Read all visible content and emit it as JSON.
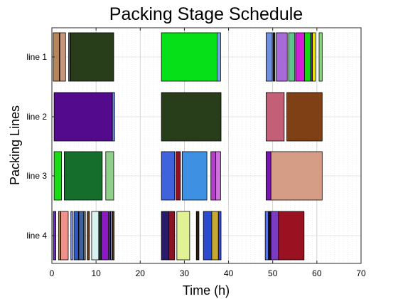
{
  "chart_data": {
    "type": "gantt",
    "title": "Packing Stage Schedule",
    "xlabel": "Time (h)",
    "ylabel": "Packing Lines",
    "xlim": [
      0,
      70
    ],
    "x_ticks": [
      0,
      10,
      20,
      30,
      40,
      50,
      60,
      70
    ],
    "grid": true,
    "categories": [
      "line 1",
      "line 2",
      "line 3",
      "line 4"
    ],
    "tasks": [
      {
        "line": "line 1",
        "start": 0.3,
        "end": 1.7,
        "color": "#B5865A"
      },
      {
        "line": "line 1",
        "start": 1.8,
        "end": 3.1,
        "color": "#C8967A"
      },
      {
        "line": "line 1",
        "start": 3.8,
        "end": 4.1,
        "color": "#4A7AC8"
      },
      {
        "line": "line 1",
        "start": 4.2,
        "end": 14.0,
        "color": "#283D19"
      },
      {
        "line": "line 1",
        "start": 24.8,
        "end": 37.4,
        "color": "#06E019"
      },
      {
        "line": "line 1",
        "start": 37.4,
        "end": 38.2,
        "color": "#6FA6E6"
      },
      {
        "line": "line 1",
        "start": 48.5,
        "end": 49.9,
        "color": "#6F8FE0"
      },
      {
        "line": "line 1",
        "start": 50.1,
        "end": 50.5,
        "color": "#2B2A12"
      },
      {
        "line": "line 1",
        "start": 50.8,
        "end": 53.3,
        "color": "#A86AD8"
      },
      {
        "line": "line 1",
        "start": 53.6,
        "end": 55.0,
        "color": "#5FC48C"
      },
      {
        "line": "line 1",
        "start": 55.2,
        "end": 57.2,
        "color": "#D21ED8"
      },
      {
        "line": "line 1",
        "start": 57.2,
        "end": 58.6,
        "color": "#12D80E"
      },
      {
        "line": "line 1",
        "start": 58.7,
        "end": 59.0,
        "color": "#6C3CC9"
      },
      {
        "line": "line 1",
        "start": 59.0,
        "end": 59.7,
        "color": "#E6E60E"
      },
      {
        "line": "line 1",
        "start": 60.5,
        "end": 61.2,
        "color": "#86D87C"
      },
      {
        "line": "line 2",
        "start": 0.5,
        "end": 13.7,
        "color": "#530A8C"
      },
      {
        "line": "line 2",
        "start": 13.7,
        "end": 14.2,
        "color": "#6E86DC"
      },
      {
        "line": "line 2",
        "start": 24.8,
        "end": 38.3,
        "color": "#283D19"
      },
      {
        "line": "line 2",
        "start": 48.5,
        "end": 52.6,
        "color": "#C35F76"
      },
      {
        "line": "line 2",
        "start": 53.2,
        "end": 61.2,
        "color": "#804016"
      },
      {
        "line": "line 3",
        "start": 0.5,
        "end": 2.2,
        "color": "#1CDA16"
      },
      {
        "line": "line 3",
        "start": 2.8,
        "end": 11.4,
        "color": "#156E2B"
      },
      {
        "line": "line 3",
        "start": 12.2,
        "end": 14.0,
        "color": "#90D08A"
      },
      {
        "line": "line 3",
        "start": 24.8,
        "end": 27.8,
        "color": "#3E63DC"
      },
      {
        "line": "line 3",
        "start": 28.1,
        "end": 29.1,
        "color": "#8C1026"
      },
      {
        "line": "line 3",
        "start": 29.5,
        "end": 35.1,
        "color": "#3E90E3"
      },
      {
        "line": "line 3",
        "start": 36.0,
        "end": 37.1,
        "color": "#B33EC9"
      },
      {
        "line": "line 3",
        "start": 37.1,
        "end": 38.2,
        "color": "#CE70DA"
      },
      {
        "line": "line 3",
        "start": 48.5,
        "end": 49.6,
        "color": "#7A14B4"
      },
      {
        "line": "line 3",
        "start": 49.6,
        "end": 61.2,
        "color": "#D59C86"
      },
      {
        "line": "line 4",
        "start": 0.3,
        "end": 0.9,
        "color": "#6E28C4"
      },
      {
        "line": "line 4",
        "start": 1.5,
        "end": 1.9,
        "color": "#D2962D"
      },
      {
        "line": "line 4",
        "start": 2.0,
        "end": 3.7,
        "color": "#F0928C"
      },
      {
        "line": "line 4",
        "start": 4.3,
        "end": 4.7,
        "color": "#8C9CF0"
      },
      {
        "line": "line 4",
        "start": 5.0,
        "end": 6.0,
        "color": "#2E5CC6"
      },
      {
        "line": "line 4",
        "start": 6.1,
        "end": 7.2,
        "color": "#4060A0"
      },
      {
        "line": "line 4",
        "start": 7.3,
        "end": 7.6,
        "color": "#D8D4A8"
      },
      {
        "line": "line 4",
        "start": 8.0,
        "end": 8.5,
        "color": "#6A3A12"
      },
      {
        "line": "line 4",
        "start": 9.0,
        "end": 10.6,
        "color": "#D8F2F2"
      },
      {
        "line": "line 4",
        "start": 10.7,
        "end": 11.1,
        "color": "#2D4040"
      },
      {
        "line": "line 4",
        "start": 11.2,
        "end": 12.8,
        "color": "#8C18C8"
      },
      {
        "line": "line 4",
        "start": 13.0,
        "end": 13.2,
        "color": "#2F2FA8"
      },
      {
        "line": "line 4",
        "start": 13.3,
        "end": 13.6,
        "color": "#C2C2E0"
      },
      {
        "line": "line 4",
        "start": 13.7,
        "end": 14.1,
        "color": "#5E3E14"
      },
      {
        "line": "line 4",
        "start": 24.8,
        "end": 26.5,
        "color": "#2A1A6A"
      },
      {
        "line": "line 4",
        "start": 26.5,
        "end": 27.8,
        "color": "#8A1424"
      },
      {
        "line": "line 4",
        "start": 28.3,
        "end": 31.2,
        "color": "#E0F294"
      },
      {
        "line": "line 4",
        "start": 32.7,
        "end": 33.3,
        "color": "#2A1F10"
      },
      {
        "line": "line 4",
        "start": 34.3,
        "end": 36.2,
        "color": "#2A4AD0"
      },
      {
        "line": "line 4",
        "start": 36.2,
        "end": 37.7,
        "color": "#C8A830"
      },
      {
        "line": "line 4",
        "start": 37.7,
        "end": 38.3,
        "color": "#3A4CC8"
      },
      {
        "line": "line 4",
        "start": 48.3,
        "end": 49.0,
        "color": "#5A76E2"
      },
      {
        "line": "line 4",
        "start": 49.1,
        "end": 49.6,
        "color": "#1E0A2A"
      },
      {
        "line": "line 4",
        "start": 49.6,
        "end": 51.3,
        "color": "#7A3CC0"
      },
      {
        "line": "line 4",
        "start": 51.3,
        "end": 57.1,
        "color": "#9A1222"
      }
    ]
  }
}
